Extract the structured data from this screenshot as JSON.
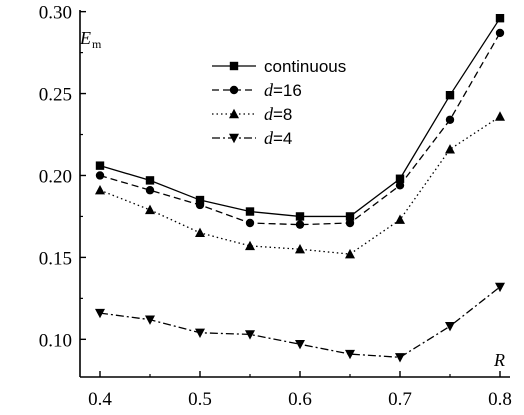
{
  "chart_data": {
    "type": "line",
    "x": [
      0.4,
      0.45,
      0.5,
      0.55,
      0.6,
      0.65,
      0.7,
      0.75,
      0.8
    ],
    "xlim": [
      0.38,
      0.81
    ],
    "ylim": [
      0.077,
      0.301
    ],
    "xticks": [
      "0.4",
      "0.5",
      "0.6",
      "0.7",
      "0.8"
    ],
    "yticks": [
      "0.10",
      "0.15",
      "0.20",
      "0.25",
      "0.30"
    ],
    "xlabel": "R",
    "ylabel_main": "E",
    "ylabel_sub": "m",
    "legend_position": "top-center",
    "grid": false,
    "series": [
      {
        "name": "continuous",
        "marker": "square",
        "dash": "solid",
        "values": [
          0.206,
          0.197,
          0.185,
          0.178,
          0.175,
          0.175,
          0.198,
          0.249,
          0.296
        ]
      },
      {
        "name_prefix": "d",
        "name_suffix": "=16",
        "marker": "circle",
        "dash": "dashed",
        "values": [
          0.2,
          0.191,
          0.182,
          0.171,
          0.17,
          0.171,
          0.194,
          0.234,
          0.287
        ]
      },
      {
        "name_prefix": "d",
        "name_suffix": "=8",
        "marker": "triangle-up",
        "dash": "dotted",
        "values": [
          0.191,
          0.179,
          0.165,
          0.157,
          0.155,
          0.152,
          0.173,
          0.216,
          0.236
        ]
      },
      {
        "name_prefix": "d",
        "name_suffix": "=4",
        "marker": "triangle-down",
        "dash": "dashdot",
        "values": [
          0.116,
          0.112,
          0.104,
          0.103,
          0.097,
          0.091,
          0.089,
          0.108,
          0.132
        ]
      }
    ]
  }
}
